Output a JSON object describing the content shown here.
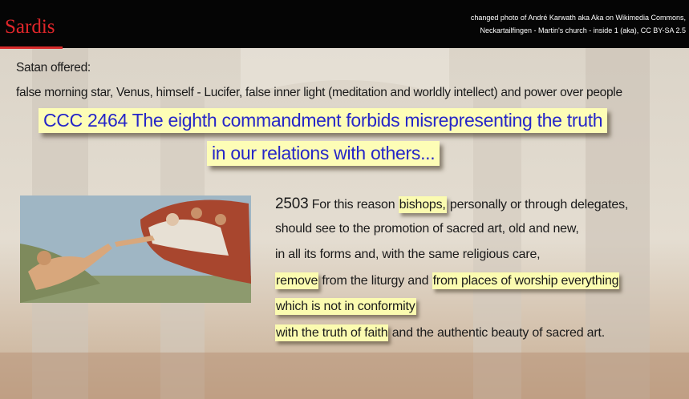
{
  "header": {
    "title": "Sardis",
    "credit": [
      "changed photo of André Karwath aka Aka on Wikimedia Commons,",
      "Neckartailfingen - Martin's church - inside 1 (aka), CC BY-SA 2.5"
    ]
  },
  "intro": [
    "Satan offered:",
    "false morning star, Venus, himself - Lucifer, false inner light (meditation and worldly intellect) and power over people"
  ],
  "callout": [
    "CCC 2464 The eighth commandment forbids misrepresenting the truth",
    "in our relations with others..."
  ],
  "quote": [
    [
      {
        "text": "2503 For this reason ",
        "highlight": false
      },
      {
        "text": "bishops,",
        "highlight": true
      },
      {
        "text": " personally or through delegates,",
        "highlight": false
      }
    ],
    [
      {
        "text": "should see to the promotion of sacred art, old and new,",
        "highlight": false
      }
    ],
    [
      {
        "text": "in all its forms and, with the same religious care,",
        "highlight": false
      }
    ],
    [
      {
        "text": "remove",
        "highlight": true
      },
      {
        "text": " from the liturgy and ",
        "highlight": false
      },
      {
        "text": "from places of worship everything",
        "highlight": true
      }
    ],
    [
      {
        "text": "which is not in conformity",
        "highlight": true
      }
    ],
    [
      {
        "text": "with the truth of faith",
        "highlight": true
      },
      {
        "text": " and the authentic beauty of sacred art.",
        "highlight": false
      }
    ]
  ]
}
